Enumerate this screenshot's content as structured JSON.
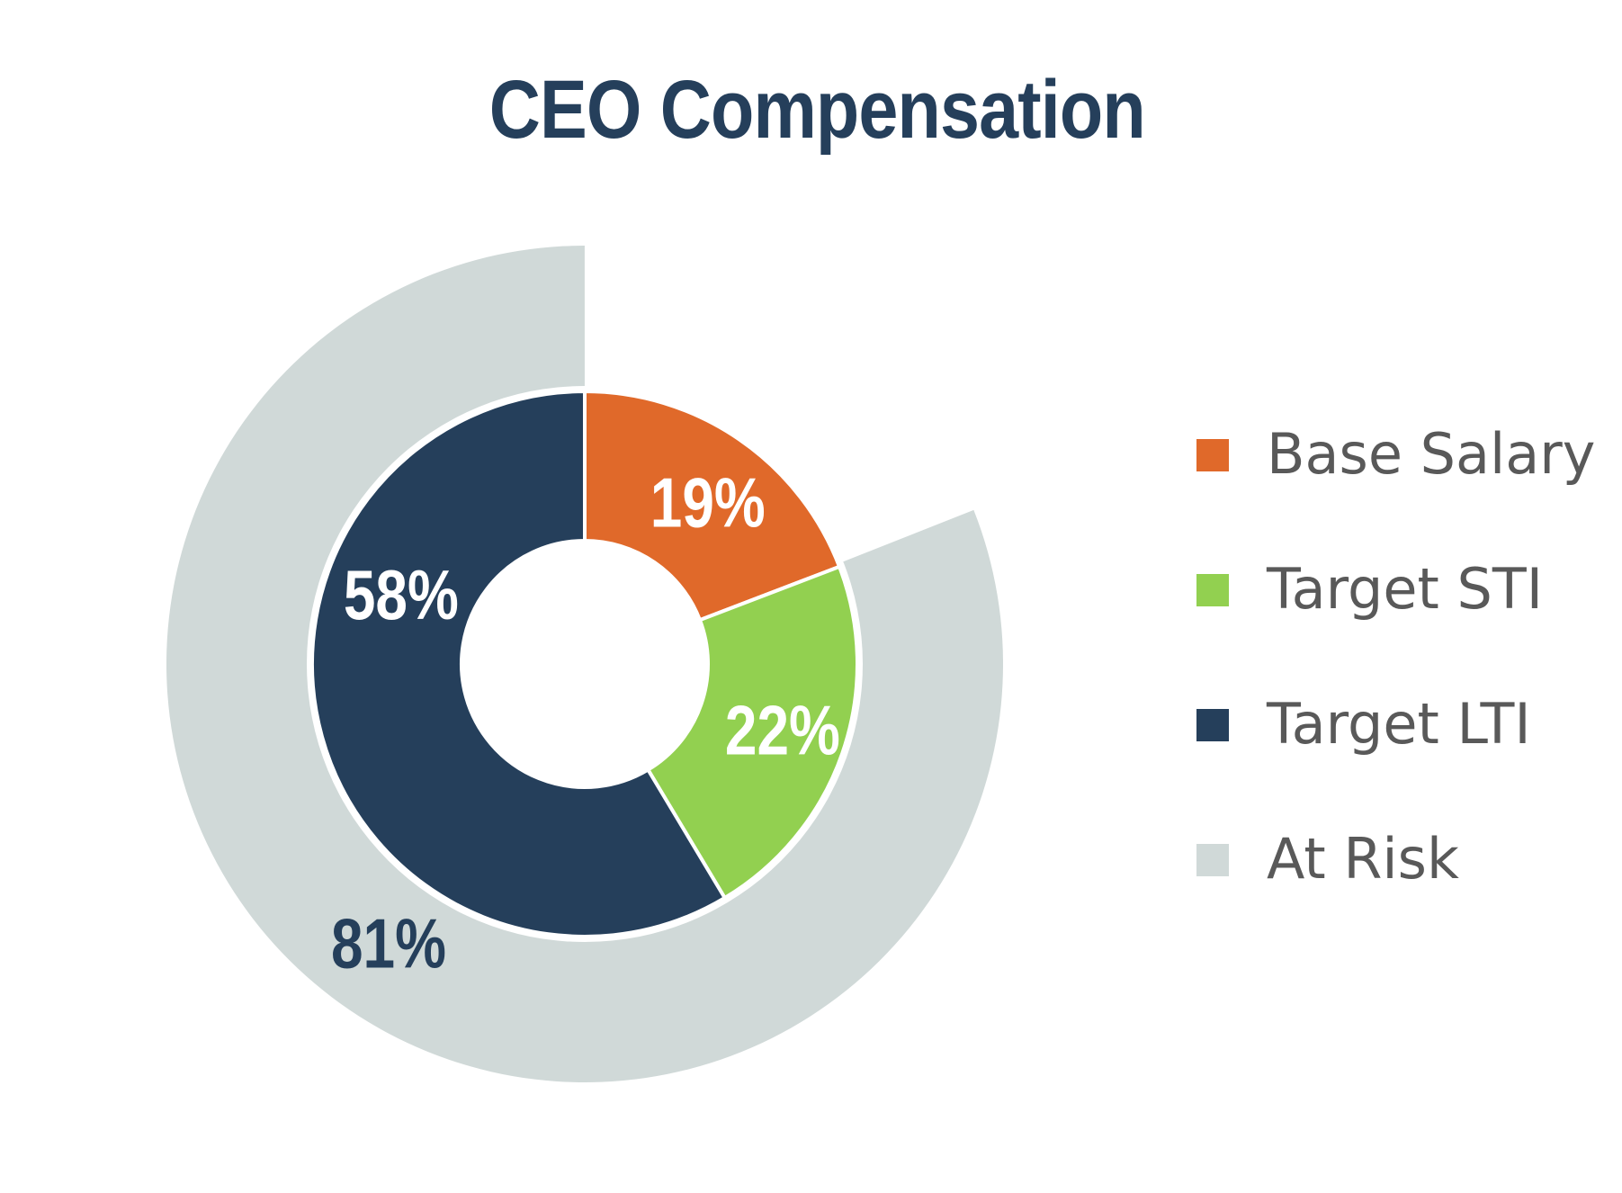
{
  "chart_data": {
    "type": "pie",
    "title": "CEO Compensation",
    "outer_ring": {
      "slices": [
        {
          "name": "At Risk",
          "value": 81,
          "label": "81%",
          "color": "#D0D9D8"
        }
      ]
    },
    "inner_ring": {
      "slices": [
        {
          "name": "Base Salary",
          "value": 19,
          "label": "19%",
          "color": "#E0692A"
        },
        {
          "name": "Target STI",
          "value": 22,
          "label": "22%",
          "color": "#92D050"
        },
        {
          "name": "Target LTI",
          "value": 58,
          "label": "58%",
          "color": "#253F5B"
        }
      ]
    },
    "legend": {
      "placement": "right",
      "items": [
        {
          "label": "Base Salary",
          "color": "#E0692A"
        },
        {
          "label": "Target STI",
          "color": "#92D050"
        },
        {
          "label": "Target LTI",
          "color": "#253F5B"
        },
        {
          "label": "At Risk",
          "color": "#D0D9D8"
        }
      ]
    },
    "title_color": "#253F5B"
  }
}
